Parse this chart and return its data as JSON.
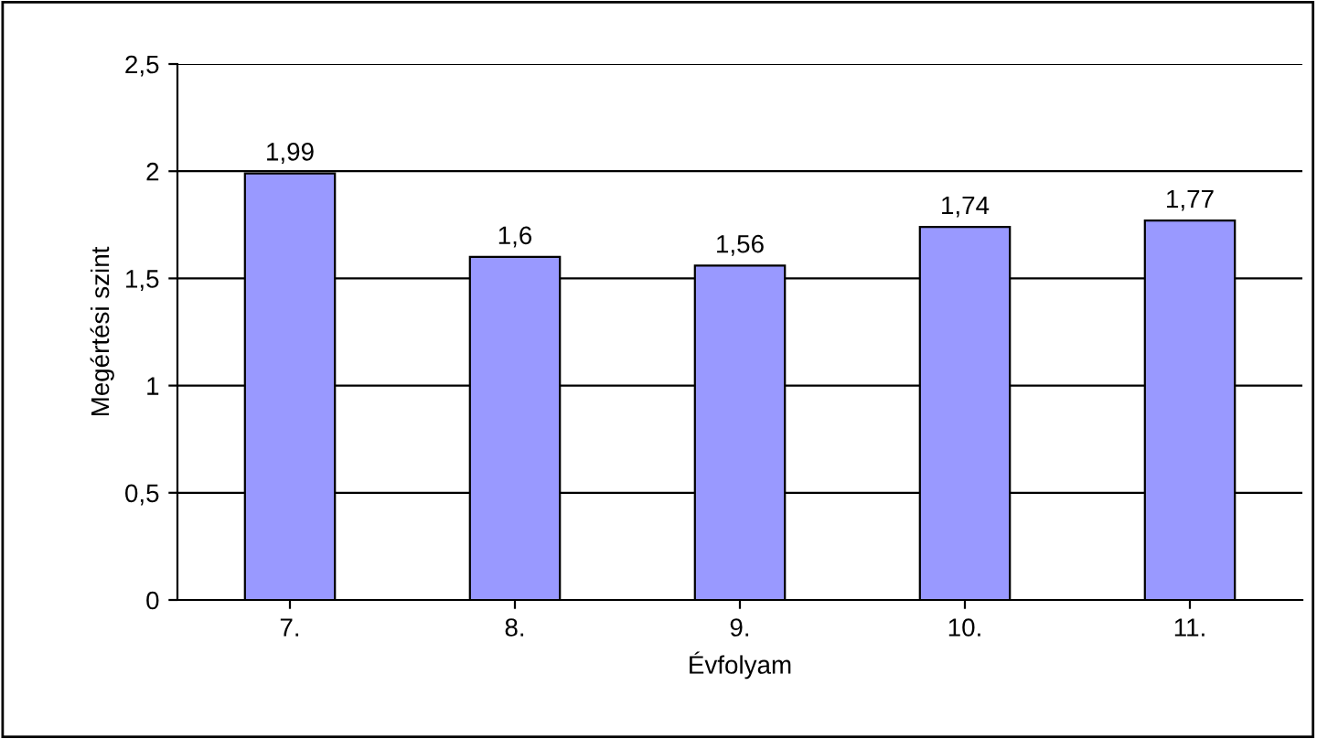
{
  "chart_data": {
    "type": "bar",
    "xlabel": "Évfolyam",
    "ylabel": "Megértési szint",
    "categories": [
      "7.",
      "8.",
      "9.",
      "10.",
      "11."
    ],
    "values": [
      1.99,
      1.6,
      1.56,
      1.74,
      1.77
    ],
    "value_labels": [
      "1,99",
      "1,6",
      "1,56",
      "1,74",
      "1,77"
    ],
    "color": "#9999ff",
    "ylim": [
      0,
      2.5
    ],
    "yticks": [
      0,
      {
        "value": 0.5,
        "label": "0,5"
      },
      1,
      {
        "value": 1.5,
        "label": "1,5"
      },
      2,
      {
        "value": 2.5,
        "label": "2,5"
      }
    ],
    "grid": "y",
    "legend": false
  }
}
